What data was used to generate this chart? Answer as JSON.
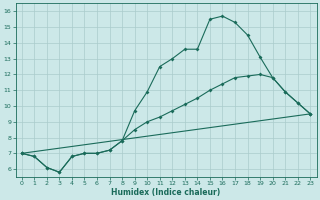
{
  "xlabel": "Humidex (Indice chaleur)",
  "bg_color": "#cce8e8",
  "grid_color": "#aacccc",
  "line_color": "#1a6b5a",
  "spine_color": "#1a6b5a",
  "xlim": [
    -0.5,
    23.5
  ],
  "ylim": [
    5.5,
    16.5
  ],
  "xticks": [
    0,
    1,
    2,
    3,
    4,
    5,
    6,
    7,
    8,
    9,
    10,
    11,
    12,
    13,
    14,
    15,
    16,
    17,
    18,
    19,
    20,
    21,
    22,
    23
  ],
  "yticks": [
    6,
    7,
    8,
    9,
    10,
    11,
    12,
    13,
    14,
    15,
    16
  ],
  "line1_x": [
    0,
    1,
    2,
    3,
    4,
    5,
    6,
    7,
    8,
    9,
    10,
    11,
    12,
    13,
    14,
    15,
    16,
    17,
    18,
    19,
    20,
    21,
    22,
    23
  ],
  "line1_y": [
    7.0,
    6.8,
    6.1,
    5.8,
    6.8,
    7.0,
    7.0,
    7.2,
    7.8,
    9.7,
    10.9,
    12.5,
    13.0,
    13.6,
    13.6,
    15.5,
    15.7,
    15.3,
    14.5,
    13.1,
    11.8,
    10.9,
    10.2,
    9.5
  ],
  "line2_x": [
    0,
    1,
    2,
    3,
    4,
    5,
    6,
    7,
    8,
    9,
    10,
    11,
    12,
    13,
    14,
    15,
    16,
    17,
    18,
    19,
    20,
    21,
    22,
    23
  ],
  "line2_y": [
    7.0,
    6.8,
    6.1,
    5.8,
    6.8,
    7.0,
    7.0,
    7.2,
    7.8,
    8.5,
    9.0,
    9.3,
    9.7,
    10.1,
    10.5,
    11.0,
    11.4,
    11.8,
    11.9,
    12.0,
    11.8,
    10.9,
    10.2,
    9.5
  ],
  "line3_x": [
    0,
    23
  ],
  "line3_y": [
    7.0,
    9.5
  ],
  "tick_fontsize": 4.5,
  "xlabel_fontsize": 5.5,
  "marker_size": 2.0
}
